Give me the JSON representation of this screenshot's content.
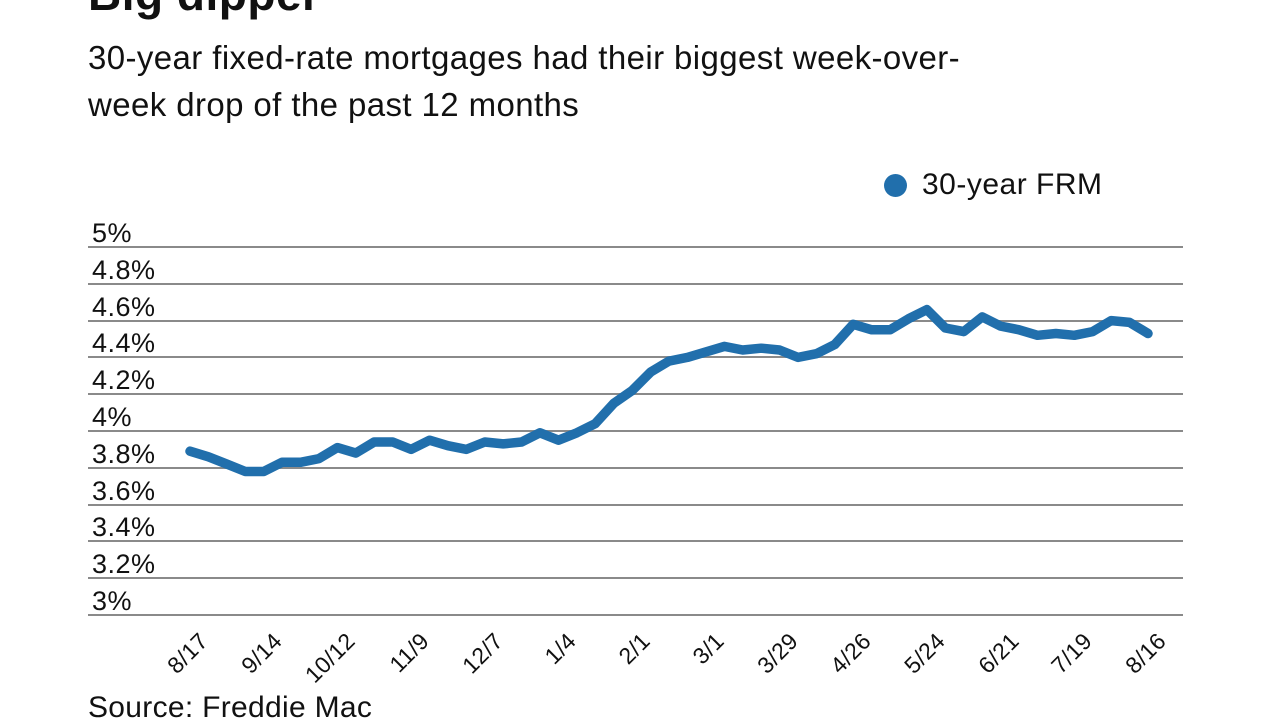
{
  "header": {
    "title": "Big dipper",
    "subtitle": "30-year fixed-rate mortgages had their biggest week-over-\nweek drop of the past 12 months"
  },
  "legend": {
    "label": "30-year FRM",
    "marker_color": "#216fac"
  },
  "source_note": "Source: Freddie Mac",
  "chart_data": {
    "type": "line",
    "title": "Big dipper",
    "subtitle": "30-year fixed-rate mortgages had their biggest week-over-week drop of the past 12 months",
    "grid": true,
    "gridline_color": "#8a8a8a",
    "legend_position": "top-right",
    "ylim": [
      3,
      5
    ],
    "y_unit": "%",
    "y_ticks": [
      {
        "value": 5.0,
        "label": "5%"
      },
      {
        "value": 4.8,
        "label": "4.8%"
      },
      {
        "value": 4.6,
        "label": "4.6%"
      },
      {
        "value": 4.4,
        "label": "4.4%"
      },
      {
        "value": 4.2,
        "label": "4.2%"
      },
      {
        "value": 4.0,
        "label": "4%"
      },
      {
        "value": 3.8,
        "label": "3.8%"
      },
      {
        "value": 3.6,
        "label": "3.6%"
      },
      {
        "value": 3.4,
        "label": "3.4%"
      },
      {
        "value": 3.2,
        "label": "3.2%"
      },
      {
        "value": 3.0,
        "label": "3%"
      }
    ],
    "x_tick_labels": [
      "8/17",
      "9/14",
      "10/12",
      "11/9",
      "12/7",
      "1/4",
      "2/1",
      "3/1",
      "3/29",
      "4/26",
      "5/24",
      "6/21",
      "7/19",
      "8/16"
    ],
    "x_tick_every": 4,
    "series": [
      {
        "name": "30-year FRM",
        "color": "#216fac",
        "values": [
          3.89,
          3.86,
          3.82,
          3.78,
          3.78,
          3.83,
          3.83,
          3.85,
          3.91,
          3.88,
          3.94,
          3.94,
          3.9,
          3.95,
          3.92,
          3.9,
          3.94,
          3.93,
          3.94,
          3.99,
          3.95,
          3.99,
          4.04,
          4.15,
          4.22,
          4.32,
          4.38,
          4.4,
          4.43,
          4.46,
          4.44,
          4.45,
          4.44,
          4.4,
          4.42,
          4.47,
          4.58,
          4.55,
          4.55,
          4.61,
          4.66,
          4.56,
          4.54,
          4.62,
          4.57,
          4.55,
          4.52,
          4.53,
          4.52,
          4.54,
          4.6,
          4.59,
          4.53
        ]
      }
    ]
  }
}
